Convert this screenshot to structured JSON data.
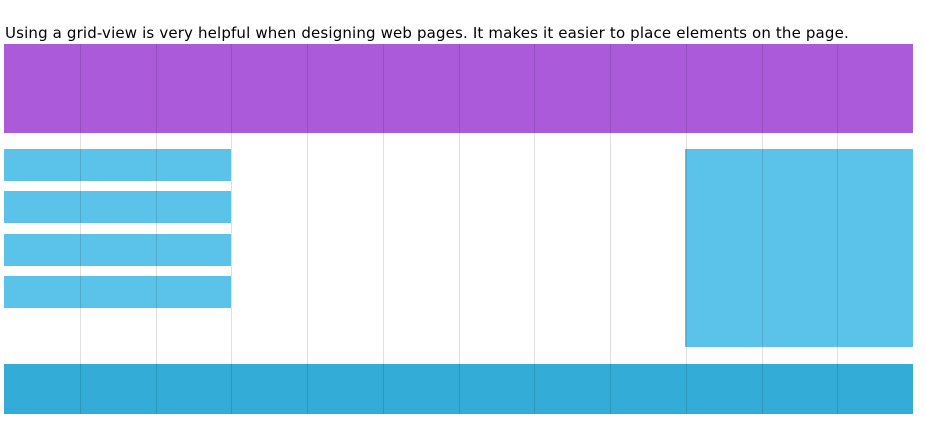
{
  "intro_text": "Using a grid-view is very helpful when designing web pages. It makes it easier to place elements on the page.",
  "grid": {
    "columns": 12
  },
  "colors": {
    "header": "#ab5bd9",
    "menu": "#5bc2e9",
    "aside": "#5bc2e9",
    "footer": "#33acd7",
    "gridline": "rgba(0,0,0,0.12)"
  }
}
